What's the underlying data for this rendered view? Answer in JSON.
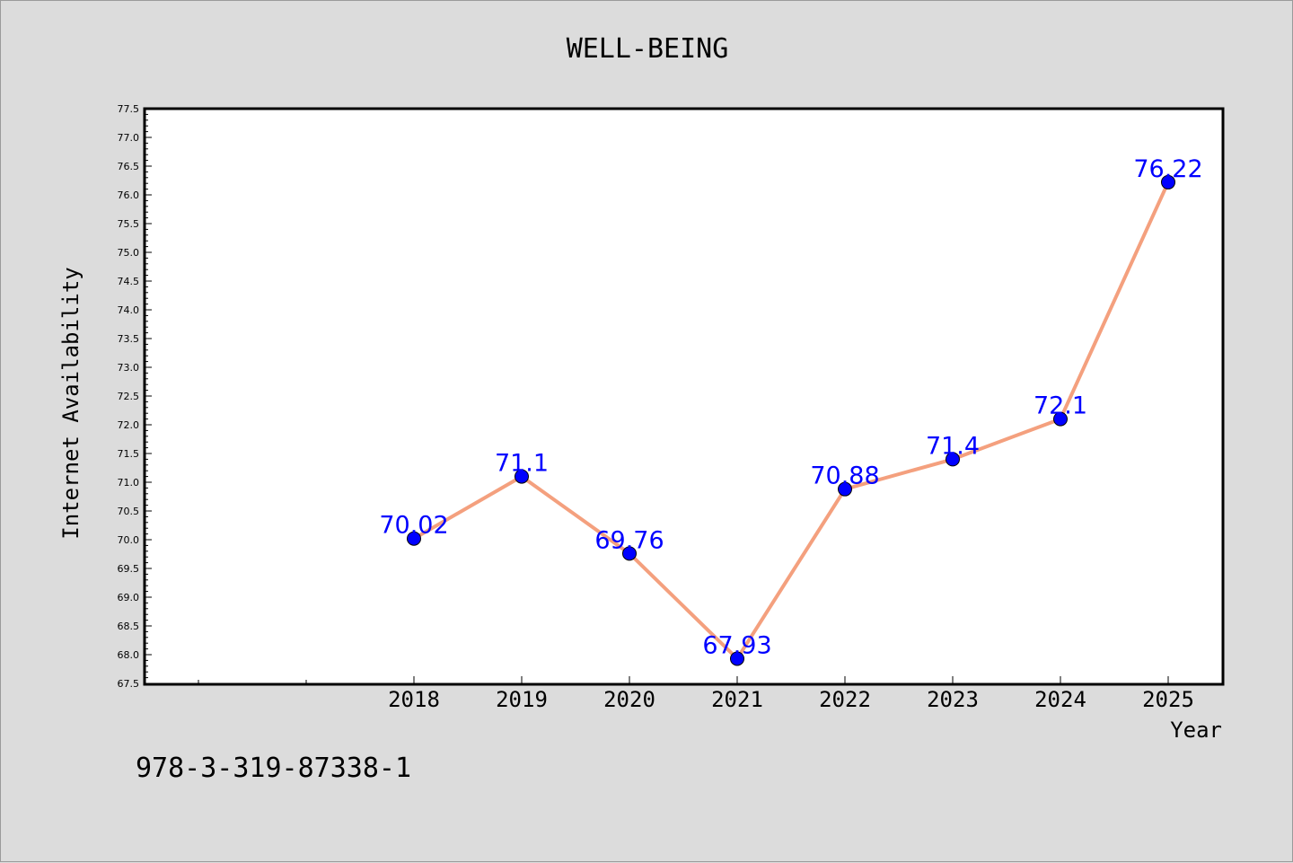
{
  "chart_data": {
    "type": "line",
    "title": "WELL-BEING",
    "xlabel": "Year",
    "ylabel": "Internet Availability",
    "categories": [
      "2018",
      "2019",
      "2020",
      "2021",
      "2022",
      "2023",
      "2024",
      "2025"
    ],
    "series": [
      {
        "values": [
          70.02,
          71.1,
          69.76,
          67.93,
          70.88,
          71.4,
          72.1,
          76.22
        ],
        "labels": [
          "70.02",
          "71.1",
          "69.76",
          "67.93",
          "70.88",
          "71.4",
          "72.1",
          "76.22"
        ]
      }
    ],
    "ylim": [
      67.5,
      77.5
    ],
    "y_ticks": [
      "67.5",
      "68.0",
      "68.5",
      "69.0",
      "69.5",
      "70.0",
      "70.5",
      "71.0",
      "71.5",
      "72.0",
      "72.5",
      "73.0",
      "73.5",
      "74.0",
      "74.5",
      "75.0",
      "75.5",
      "76.0",
      "76.5",
      "77.0",
      "77.5"
    ],
    "grid": false,
    "colors": {
      "line": "#f4a07e",
      "marker": "#0000ff",
      "data_label": "#0000ff",
      "background": "#dcdcdc",
      "plot_area": "#ffffff"
    }
  },
  "footer_text": "978-3-319-87338-1"
}
